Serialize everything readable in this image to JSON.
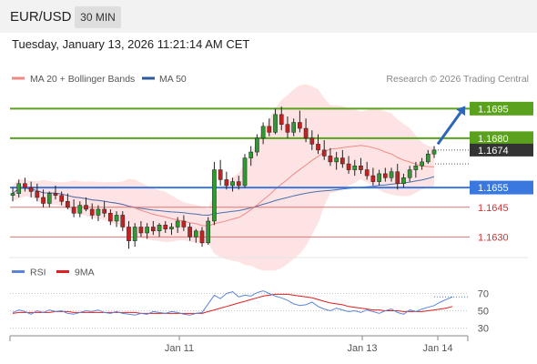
{
  "header": {
    "symbol": "EUR/USD",
    "timeframe": "30 MIN"
  },
  "datetime": "Tuesday, January 13, 2026 11:21:14 AM CET",
  "legend": {
    "items": [
      {
        "label": "MA 20 + Bollinger Bands",
        "color": "#f08a86"
      },
      {
        "label": "MA 50",
        "color": "#2e5a9c"
      }
    ],
    "credit": "Research © 2026 Trading Central"
  },
  "rsi_legend": {
    "items": [
      {
        "label": "RSI",
        "color": "#5b84d8"
      },
      {
        "label": "9MA",
        "color": "#e02020"
      }
    ]
  },
  "chart_data": [
    {
      "type": "candlestick",
      "title": "",
      "y_range": [
        1.162,
        1.1703
      ],
      "x_ticks": [
        "Jan 11",
        "Jan 13",
        "Jan 14"
      ],
      "current_price": {
        "label": "1.1674",
        "value": 1.1674
      },
      "levels": [
        {
          "label": "1.1695",
          "value": 1.1695,
          "kind": "resistance"
        },
        {
          "label": "1.1680",
          "value": 1.168,
          "kind": "resistance"
        },
        {
          "label": "1.1655",
          "value": 1.1655,
          "kind": "pivot"
        },
        {
          "label": "1.1645",
          "value": 1.1645,
          "kind": "support"
        },
        {
          "label": "1.1630",
          "value": 1.163,
          "kind": "support"
        }
      ],
      "candles": [
        [
          1.1651,
          1.1655,
          1.1648,
          1.1652
        ],
        [
          1.1652,
          1.1659,
          1.165,
          1.1657
        ],
        [
          1.1657,
          1.166,
          1.1653,
          1.1655
        ],
        [
          1.1655,
          1.1658,
          1.165,
          1.1653
        ],
        [
          1.1653,
          1.1657,
          1.1648,
          1.165
        ],
        [
          1.165,
          1.1654,
          1.1645,
          1.1647
        ],
        [
          1.1647,
          1.1653,
          1.1645,
          1.1652
        ],
        [
          1.1652,
          1.1656,
          1.1649,
          1.1651
        ],
        [
          1.1651,
          1.1653,
          1.1646,
          1.1648
        ],
        [
          1.1648,
          1.1652,
          1.1644,
          1.1645
        ],
        [
          1.1645,
          1.1649,
          1.164,
          1.1642
        ],
        [
          1.1642,
          1.1648,
          1.164,
          1.1646
        ],
        [
          1.1646,
          1.165,
          1.1643,
          1.1644
        ],
        [
          1.1644,
          1.1647,
          1.1639,
          1.1641
        ],
        [
          1.1641,
          1.1646,
          1.1638,
          1.1644
        ],
        [
          1.1644,
          1.1648,
          1.164,
          1.1642
        ],
        [
          1.1642,
          1.1644,
          1.1636,
          1.1638
        ],
        [
          1.1638,
          1.1643,
          1.1635,
          1.1641
        ],
        [
          1.1641,
          1.1643,
          1.1633,
          1.1635
        ],
        [
          1.1635,
          1.1638,
          1.1624,
          1.1628
        ],
        [
          1.1628,
          1.1637,
          1.1625,
          1.1635
        ],
        [
          1.1635,
          1.1638,
          1.163,
          1.1632
        ],
        [
          1.1632,
          1.1637,
          1.1629,
          1.1635
        ],
        [
          1.1635,
          1.1638,
          1.1631,
          1.1633
        ],
        [
          1.1633,
          1.1637,
          1.163,
          1.1636
        ],
        [
          1.1636,
          1.1638,
          1.1632,
          1.1634
        ],
        [
          1.1634,
          1.1637,
          1.1631,
          1.1635
        ],
        [
          1.1635,
          1.164,
          1.1632,
          1.1638
        ],
        [
          1.1638,
          1.1641,
          1.1633,
          1.1635
        ],
        [
          1.1635,
          1.1637,
          1.1628,
          1.163
        ],
        [
          1.163,
          1.1634,
          1.1627,
          1.1633
        ],
        [
          1.1633,
          1.1635,
          1.1625,
          1.1627
        ],
        [
          1.1627,
          1.164,
          1.1626,
          1.1638
        ],
        [
          1.1638,
          1.1668,
          1.1636,
          1.1664
        ],
        [
          1.1664,
          1.1669,
          1.1656,
          1.1659
        ],
        [
          1.1659,
          1.1663,
          1.1654,
          1.1656
        ],
        [
          1.1656,
          1.166,
          1.1653,
          1.1658
        ],
        [
          1.1658,
          1.1661,
          1.1654,
          1.1656
        ],
        [
          1.1656,
          1.1672,
          1.1655,
          1.167
        ],
        [
          1.167,
          1.1676,
          1.1666,
          1.1673
        ],
        [
          1.1673,
          1.1682,
          1.1671,
          1.168
        ],
        [
          1.168,
          1.1688,
          1.1677,
          1.1686
        ],
        [
          1.1686,
          1.169,
          1.1681,
          1.1683
        ],
        [
          1.1683,
          1.1695,
          1.1682,
          1.1692
        ],
        [
          1.1692,
          1.1696,
          1.1684,
          1.1687
        ],
        [
          1.1687,
          1.1691,
          1.168,
          1.1683
        ],
        [
          1.1683,
          1.169,
          1.1681,
          1.1688
        ],
        [
          1.1688,
          1.1694,
          1.1683,
          1.1685
        ],
        [
          1.1685,
          1.169,
          1.1678,
          1.168
        ],
        [
          1.168,
          1.1684,
          1.1674,
          1.1677
        ],
        [
          1.1677,
          1.1682,
          1.1672,
          1.1674
        ],
        [
          1.1674,
          1.1679,
          1.1669,
          1.1671
        ],
        [
          1.1671,
          1.1675,
          1.1666,
          1.1668
        ],
        [
          1.1668,
          1.1673,
          1.1664,
          1.167
        ],
        [
          1.167,
          1.1674,
          1.1665,
          1.1667
        ],
        [
          1.1667,
          1.1671,
          1.1662,
          1.1664
        ],
        [
          1.1664,
          1.1669,
          1.1661,
          1.1666
        ],
        [
          1.1666,
          1.167,
          1.1662,
          1.1664
        ],
        [
          1.1664,
          1.1668,
          1.1659,
          1.1661
        ],
        [
          1.1661,
          1.1665,
          1.1656,
          1.1658
        ],
        [
          1.1658,
          1.1664,
          1.1656,
          1.1662
        ],
        [
          1.1662,
          1.1665,
          1.1658,
          1.166
        ],
        [
          1.166,
          1.1665,
          1.1658,
          1.1663
        ],
        [
          1.1663,
          1.1667,
          1.1654,
          1.1657
        ],
        [
          1.1657,
          1.1662,
          1.1655,
          1.166
        ],
        [
          1.166,
          1.1666,
          1.1658,
          1.1664
        ],
        [
          1.1664,
          1.1668,
          1.166,
          1.1666
        ],
        [
          1.1666,
          1.167,
          1.1664,
          1.1668
        ],
        [
          1.1668,
          1.1674,
          1.1667,
          1.1672
        ],
        [
          1.1672,
          1.1676,
          1.167,
          1.1674
        ]
      ]
    },
    {
      "type": "line",
      "title": "",
      "y_range": [
        20,
        80
      ],
      "y_ticks": [
        70,
        50,
        30
      ],
      "series": [
        {
          "name": "RSI",
          "values": [
            48,
            51,
            49,
            46,
            50,
            48,
            51,
            49,
            50,
            47,
            46,
            48,
            50,
            49,
            51,
            48,
            47,
            49,
            47,
            46,
            45,
            47,
            46,
            49,
            48,
            47,
            49,
            48,
            46,
            45,
            47,
            48,
            58,
            68,
            64,
            70,
            72,
            66,
            68,
            67,
            71,
            73,
            70,
            67,
            65,
            62,
            58,
            56,
            57,
            60,
            55,
            52,
            50,
            53,
            51,
            49,
            50,
            48,
            51,
            49,
            47,
            50,
            52,
            48,
            46,
            51,
            49,
            52,
            54,
            56,
            60,
            63,
            66
          ]
        },
        {
          "name": "9MA",
          "values": [
            47,
            48,
            48,
            48,
            48,
            48,
            48,
            49,
            49,
            49,
            48,
            48,
            48,
            48,
            48,
            48,
            48,
            48,
            48,
            48,
            48,
            47,
            47,
            47,
            47,
            47,
            47,
            47,
            47,
            47,
            47,
            47,
            49,
            51,
            53,
            55,
            57,
            59,
            61,
            63,
            65,
            67,
            68,
            69,
            69,
            69,
            68,
            67,
            66,
            65,
            63,
            61,
            59,
            58,
            57,
            55,
            54,
            53,
            52,
            51,
            51,
            50,
            50,
            50,
            49,
            49,
            49,
            49,
            50,
            51,
            52,
            53,
            55
          ]
        }
      ]
    }
  ]
}
